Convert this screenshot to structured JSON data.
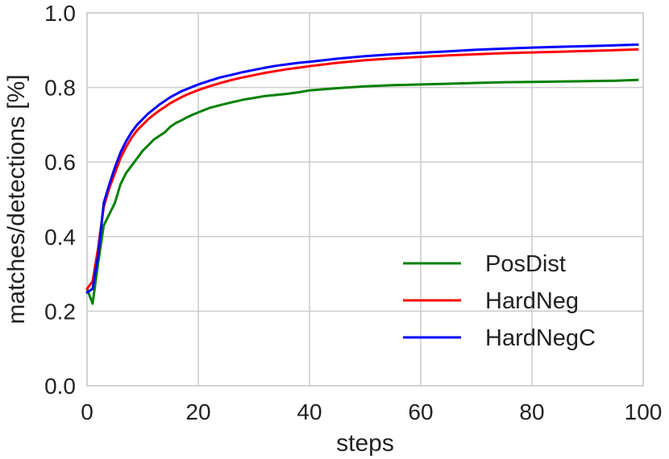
{
  "chart_data": {
    "type": "line",
    "xlabel": "steps",
    "ylabel": "matches/detections [%]",
    "xlim": [
      0,
      100
    ],
    "ylim": [
      0.0,
      1.0
    ],
    "xticks": [
      "0",
      "20",
      "40",
      "60",
      "80",
      "100"
    ],
    "yticks": [
      "0.0",
      "0.2",
      "0.4",
      "0.6",
      "0.8",
      "1.0"
    ],
    "grid": true,
    "legend_position": "bottom-right",
    "series": [
      {
        "name": "PosDist",
        "color": "#008000",
        "x": [
          0,
          1,
          2,
          3,
          4,
          5,
          6,
          7,
          8,
          9,
          10,
          11,
          12,
          13,
          14,
          15,
          16,
          17,
          18,
          19,
          20,
          22,
          24,
          26,
          28,
          30,
          32,
          34,
          36,
          38,
          40,
          45,
          50,
          55,
          60,
          65,
          70,
          75,
          80,
          85,
          90,
          95,
          99
        ],
        "y": [
          0.26,
          0.22,
          0.33,
          0.43,
          0.46,
          0.49,
          0.54,
          0.57,
          0.59,
          0.61,
          0.63,
          0.645,
          0.66,
          0.67,
          0.68,
          0.695,
          0.705,
          0.712,
          0.72,
          0.727,
          0.733,
          0.745,
          0.753,
          0.76,
          0.767,
          0.772,
          0.777,
          0.78,
          0.783,
          0.787,
          0.792,
          0.798,
          0.803,
          0.806,
          0.808,
          0.81,
          0.812,
          0.814,
          0.815,
          0.816,
          0.817,
          0.818,
          0.82
        ]
      },
      {
        "name": "HardNeg",
        "color": "#ff0000",
        "x": [
          0,
          1,
          2,
          3,
          4,
          5,
          6,
          7,
          8,
          9,
          10,
          11,
          12,
          13,
          14,
          15,
          16,
          17,
          18,
          19,
          20,
          22,
          24,
          26,
          28,
          30,
          32,
          34,
          36,
          38,
          40,
          45,
          50,
          55,
          60,
          65,
          70,
          75,
          80,
          85,
          90,
          95,
          99
        ],
        "y": [
          0.26,
          0.28,
          0.37,
          0.48,
          0.53,
          0.57,
          0.61,
          0.64,
          0.665,
          0.685,
          0.7,
          0.715,
          0.727,
          0.738,
          0.748,
          0.758,
          0.766,
          0.774,
          0.781,
          0.787,
          0.793,
          0.803,
          0.812,
          0.82,
          0.827,
          0.833,
          0.839,
          0.844,
          0.849,
          0.853,
          0.857,
          0.866,
          0.873,
          0.878,
          0.882,
          0.886,
          0.889,
          0.892,
          0.894,
          0.896,
          0.898,
          0.9,
          0.902
        ]
      },
      {
        "name": "HardNegC",
        "color": "#0000ff",
        "x": [
          0,
          1,
          2,
          3,
          4,
          5,
          6,
          7,
          8,
          9,
          10,
          11,
          12,
          13,
          14,
          15,
          16,
          17,
          18,
          19,
          20,
          22,
          24,
          26,
          28,
          30,
          32,
          34,
          36,
          38,
          40,
          45,
          50,
          55,
          60,
          65,
          70,
          75,
          80,
          85,
          90,
          95,
          99
        ],
        "y": [
          0.25,
          0.26,
          0.35,
          0.49,
          0.54,
          0.585,
          0.625,
          0.655,
          0.68,
          0.7,
          0.715,
          0.73,
          0.742,
          0.754,
          0.764,
          0.774,
          0.782,
          0.79,
          0.796,
          0.802,
          0.808,
          0.818,
          0.827,
          0.834,
          0.841,
          0.847,
          0.853,
          0.858,
          0.862,
          0.866,
          0.869,
          0.877,
          0.884,
          0.889,
          0.893,
          0.897,
          0.901,
          0.904,
          0.907,
          0.909,
          0.911,
          0.913,
          0.915
        ]
      }
    ]
  }
}
